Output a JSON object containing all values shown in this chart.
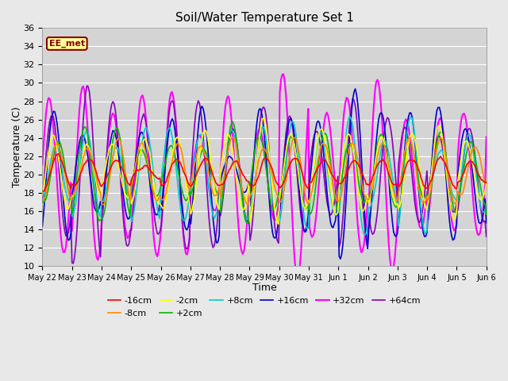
{
  "title": "Soil/Water Temperature Set 1",
  "xlabel": "Time",
  "ylabel": "Temperature (C)",
  "ylim": [
    10,
    36
  ],
  "yticks": [
    10,
    12,
    14,
    16,
    18,
    20,
    22,
    24,
    26,
    28,
    30,
    32,
    34,
    36
  ],
  "fig_facecolor": "#e8e8e8",
  "ax_facecolor": "#d4d4d4",
  "annotation_text": "EE_met",
  "annotation_bg": "#ffff99",
  "annotation_border": "#8b0000",
  "tick_labels": [
    "May 22",
    "May 23",
    "May 24",
    "May 25",
    "May 26",
    "May 27",
    "May 28",
    "May 29",
    "May 30",
    "May 31",
    "Jun 1",
    "Jun 2",
    "Jun 3",
    "Jun 4",
    "Jun 5",
    "Jun 6"
  ],
  "series_order": [
    "-16cm",
    "-8cm",
    "-2cm",
    "+2cm",
    "+8cm",
    "+16cm",
    "+32cm",
    "+64cm"
  ],
  "colors": {
    "-16cm": "#ff0000",
    "-8cm": "#ff8800",
    "-2cm": "#ffff00",
    "+2cm": "#00bb00",
    "+8cm": "#00cccc",
    "+16cm": "#0000cc",
    "+32cm": "#ff00ff",
    "+64cm": "#8800bb"
  },
  "linewidths": {
    "-16cm": 1.2,
    "-8cm": 1.2,
    "-2cm": 1.2,
    "+2cm": 1.2,
    "+8cm": 1.2,
    "+16cm": 1.2,
    "+32cm": 1.5,
    "+64cm": 1.2
  }
}
